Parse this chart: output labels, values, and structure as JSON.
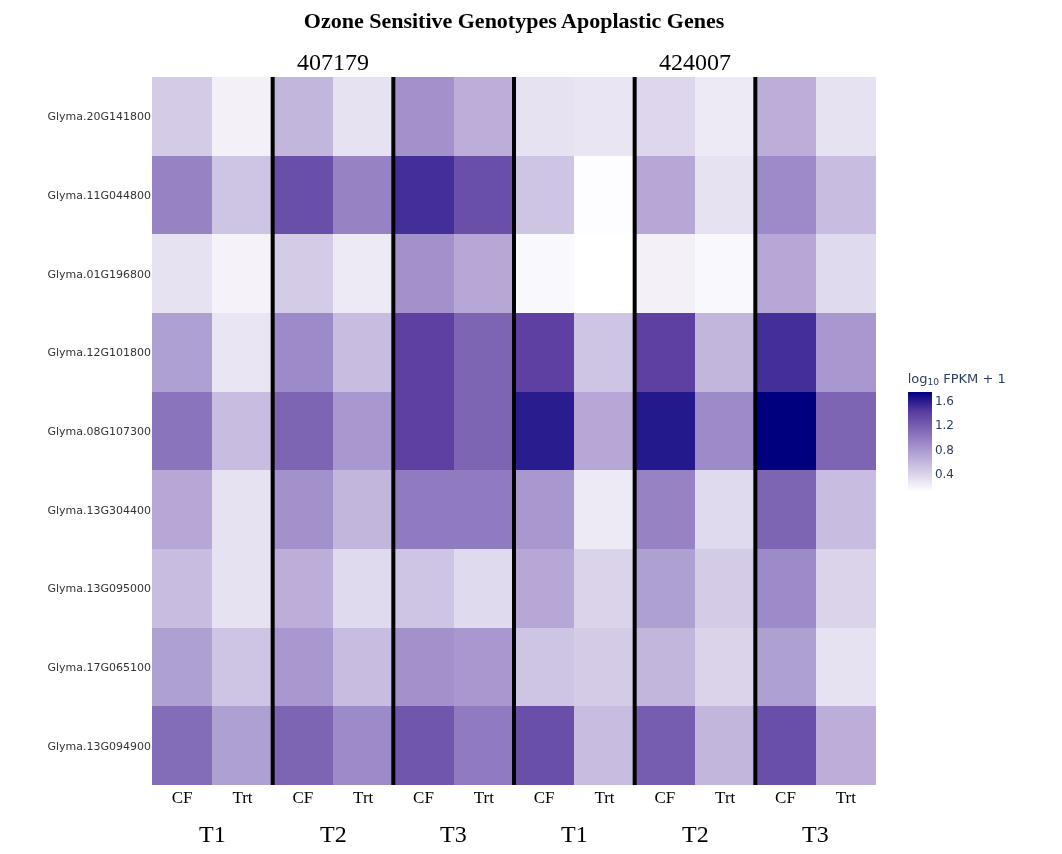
{
  "chart_data": {
    "type": "heatmap",
    "title": "Ozone Sensitive Genotypes Apoplastic Genes",
    "categories": [
      "CF",
      "Trt",
      "CF",
      "Trt",
      "CF",
      "Trt",
      "CF",
      "Trt",
      "CF",
      "Trt",
      "CF",
      "Trt"
    ],
    "y_categories": [
      "Glyma.20G141800",
      "Glyma.11G044800",
      "Glyma.01G196800",
      "Glyma.12G101800",
      "Glyma.08G107300",
      "Glyma.13G304400",
      "Glyma.13G095000",
      "Glyma.17G065100",
      "Glyma.13G094900"
    ],
    "cells": [
      [
        0.45,
        0.2,
        0.6,
        0.3,
        0.85,
        0.65,
        0.3,
        0.28,
        0.38,
        0.25,
        0.65,
        0.3
      ],
      [
        0.95,
        0.5,
        1.3,
        0.95,
        1.5,
        1.3,
        0.5,
        0.12,
        0.7,
        0.3,
        0.9,
        0.55
      ],
      [
        0.3,
        0.18,
        0.45,
        0.25,
        0.85,
        0.7,
        0.15,
        0.1,
        0.2,
        0.15,
        0.7,
        0.35
      ],
      [
        0.75,
        0.28,
        0.9,
        0.55,
        1.4,
        1.15,
        1.4,
        0.5,
        1.4,
        0.6,
        1.5,
        0.8
      ],
      [
        1.05,
        0.55,
        1.15,
        0.8,
        1.4,
        1.15,
        1.6,
        0.7,
        1.62,
        0.9,
        1.75,
        1.15
      ],
      [
        0.7,
        0.3,
        0.85,
        0.6,
        1.0,
        1.0,
        0.8,
        0.25,
        0.95,
        0.35,
        1.15,
        0.55
      ],
      [
        0.55,
        0.3,
        0.65,
        0.35,
        0.5,
        0.35,
        0.7,
        0.4,
        0.75,
        0.45,
        0.9,
        0.4
      ],
      [
        0.75,
        0.5,
        0.8,
        0.55,
        0.85,
        0.8,
        0.5,
        0.45,
        0.6,
        0.4,
        0.75,
        0.3
      ],
      [
        1.1,
        0.75,
        1.15,
        0.9,
        1.25,
        1.0,
        1.3,
        0.55,
        1.2,
        0.6,
        1.3,
        0.65
      ]
    ],
    "clabel": "log$_{10}$ FPKM + 1",
    "clim": [
      0.1,
      1.75
    ],
    "cticks": [
      0.4,
      0.8,
      1.2,
      1.6
    ],
    "annotations": [
      "407179",
      "424007",
      "T1",
      "T2",
      "T3",
      "T1",
      "T2",
      "T3"
    ]
  }
}
